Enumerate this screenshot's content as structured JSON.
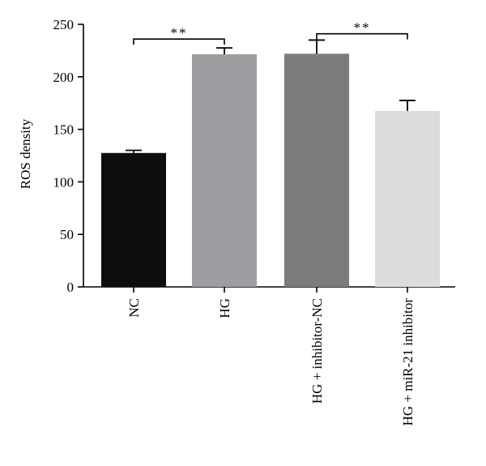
{
  "chart_data": {
    "type": "bar",
    "categories": [
      "NC",
      "HG",
      "HG + inhibitor-NC",
      "HG + miR-21 inhibitor"
    ],
    "values": [
      127.5,
      221.5,
      222,
      167.5
    ],
    "errors": [
      2.5,
      6,
      13,
      10
    ],
    "bar_colors": [
      "#0d0d0d",
      "#9e9ea2",
      "#7c7c7f",
      "#dcdcde"
    ],
    "xlabel": "",
    "ylabel": "ROS density",
    "ylim": [
      0,
      250
    ],
    "yticks": [
      0,
      50,
      100,
      150,
      200,
      250
    ],
    "grid": false,
    "significance": [
      {
        "from": 0,
        "to": 1,
        "label": "**",
        "y": 236
      },
      {
        "from": 2,
        "to": 3,
        "label": "**",
        "y": 241
      }
    ]
  }
}
